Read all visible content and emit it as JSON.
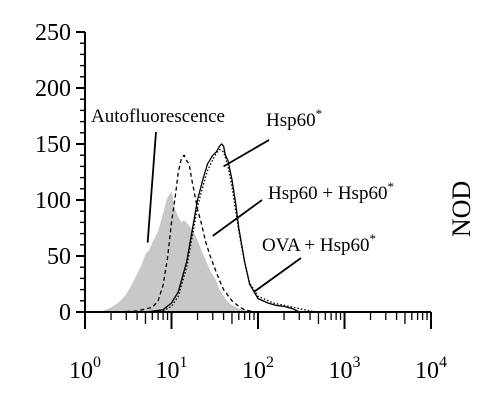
{
  "chart_data": {
    "type": "area",
    "xscale": "log",
    "xlim": [
      1,
      10000
    ],
    "ylim": [
      0,
      250
    ],
    "x_tick_labels": [
      {
        "value": 1,
        "base": "10",
        "exp": "0"
      },
      {
        "value": 10,
        "base": "10",
        "exp": "1"
      },
      {
        "value": 100,
        "base": "10",
        "exp": "2"
      },
      {
        "value": 1000,
        "base": "10",
        "exp": "3"
      },
      {
        "value": 10000,
        "base": "10",
        "exp": "4"
      }
    ],
    "y_ticks": [
      0,
      50,
      100,
      150,
      200,
      250
    ],
    "side_label": "NOD",
    "colors": {
      "filled": "#c8c8c8",
      "line": "#000000"
    },
    "series": [
      {
        "style": "filled",
        "x": [
          1.5,
          2,
          2.5,
          3,
          3.5,
          4,
          4.5,
          5,
          5.5,
          6,
          7,
          8,
          8.5,
          9,
          10,
          11,
          12,
          13,
          14,
          16,
          18,
          20,
          22,
          25,
          28,
          32,
          36,
          40,
          45,
          50,
          60,
          70,
          80,
          100,
          120
        ],
        "y": [
          0,
          4,
          9,
          16,
          25,
          34,
          42,
          52,
          55,
          62,
          72,
          88,
          96,
          102,
          108,
          92,
          85,
          80,
          82,
          77,
          72,
          64,
          56,
          46,
          37,
          30,
          20,
          14,
          9,
          6,
          3,
          2,
          1,
          0,
          0
        ]
      },
      {
        "style": "dashed",
        "x": [
          2.5,
          4,
          6,
          7,
          8,
          9,
          10,
          11,
          12,
          13,
          14,
          15,
          16,
          17,
          18,
          20,
          22,
          25,
          28,
          32,
          36,
          40,
          50,
          60,
          70,
          80,
          100
        ],
        "y": [
          0,
          1,
          4,
          10,
          24,
          48,
          80,
          102,
          125,
          137,
          140,
          135,
          132,
          120,
          110,
          92,
          80,
          62,
          50,
          38,
          28,
          20,
          10,
          5,
          2,
          1,
          0
        ]
      },
      {
        "style": "solid",
        "x": [
          5,
          8,
          10,
          12,
          15,
          18,
          20,
          23,
          26,
          30,
          33,
          36,
          38,
          40,
          42,
          45,
          50,
          55,
          60,
          70,
          80,
          100,
          130,
          160,
          200,
          250,
          300
        ],
        "y": [
          0,
          2,
          8,
          18,
          45,
          80,
          100,
          118,
          132,
          140,
          143,
          148,
          150,
          148,
          140,
          135,
          118,
          98,
          75,
          45,
          25,
          12,
          8,
          6,
          5,
          3,
          0
        ]
      },
      {
        "style": "dotted",
        "x": [
          5,
          8,
          10,
          12,
          15,
          18,
          20,
          23,
          26,
          30,
          33,
          36,
          40,
          45,
          50,
          60,
          70,
          80,
          100,
          150,
          200,
          300,
          400,
          500
        ],
        "y": [
          0,
          1,
          5,
          14,
          40,
          74,
          94,
          112,
          126,
          136,
          142,
          145,
          143,
          130,
          112,
          72,
          44,
          26,
          14,
          8,
          6,
          3,
          1,
          0
        ]
      }
    ],
    "annotations": [
      {
        "text": "Autofluorescence",
        "sup": "",
        "pointer_to": [
          5.3,
          62
        ]
      },
      {
        "text": "Hsp60",
        "sup": "*",
        "pointer_to": [
          40,
          130
        ]
      },
      {
        "text": "Hsp60 + Hsp60",
        "sup": "*",
        "pointer_to": [
          30,
          68
        ]
      },
      {
        "text": "OVA  + Hsp60",
        "sup": "*",
        "pointer_to": [
          90,
          18
        ]
      }
    ]
  }
}
